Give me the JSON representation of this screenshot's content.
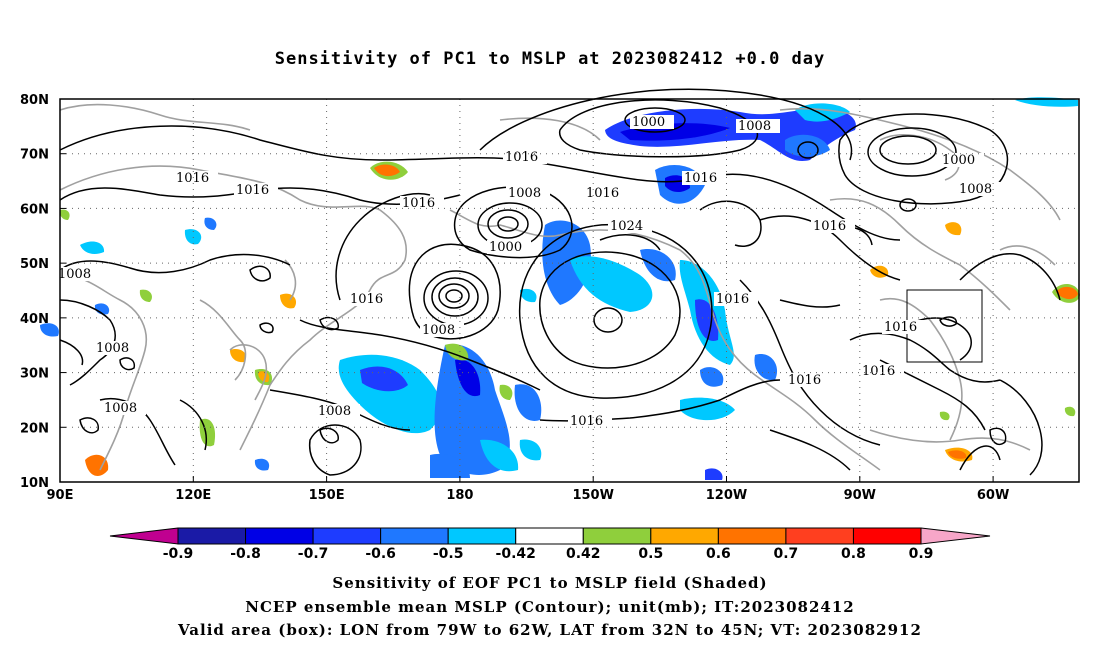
{
  "title": "Sensitivity of PC1 to MSLP at 2023082412 +0.0 day",
  "axes": {
    "lat_labels": [
      "80N",
      "70N",
      "60N",
      "50N",
      "40N",
      "30N",
      "20N",
      "10N"
    ],
    "lon_labels": [
      "90E",
      "120E",
      "150E",
      "180",
      "150W",
      "120W",
      "90W",
      "60W"
    ]
  },
  "contour_labels": {
    "c1000": "1000",
    "c1008": "1008",
    "c1016": "1016",
    "c1024": "1024"
  },
  "colorbar": {
    "labels": [
      "-0.9",
      "-0.8",
      "-0.7",
      "-0.6",
      "-0.5",
      "-0.42",
      "0.42",
      "0.5",
      "0.6",
      "0.7",
      "0.8",
      "0.9"
    ],
    "colors": [
      "#1a1aa6",
      "#0000e6",
      "#1e3cff",
      "#1f78ff",
      "#00c8ff",
      "#ffffff",
      "#8fcf3c",
      "#ffa800",
      "#ff7300",
      "#ff3f1f",
      "#ff0000"
    ],
    "below_color": "#c00090",
    "above_color": "#f7a6c8"
  },
  "captions": {
    "line1": "Sensitivity of EOF PC1 to MSLP field (Shaded)",
    "line2": "NCEP ensemble mean MSLP (Contour); unit(mb); IT:2023082412",
    "line3": "Valid area (box): LON from 79W to 62W, LAT from 32N to 45N; VT: 2023082912"
  }
}
